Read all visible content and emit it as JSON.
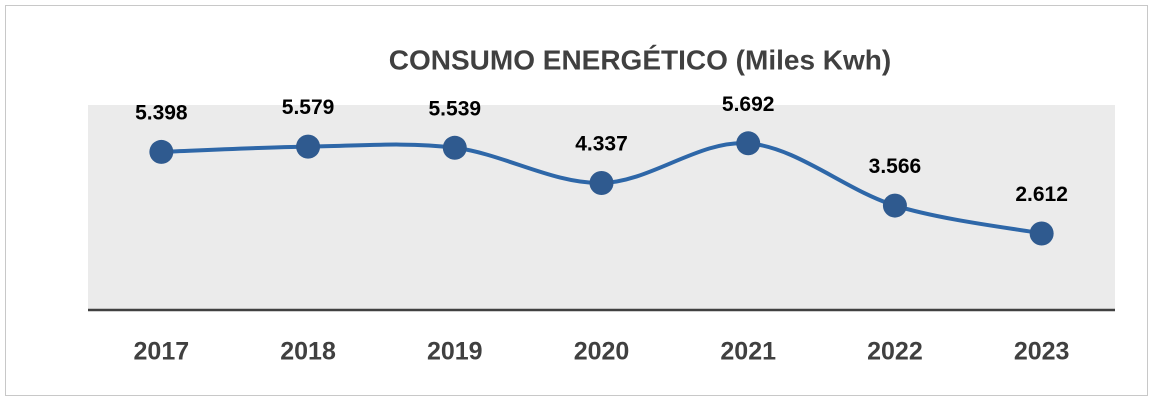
{
  "chart_data": {
    "type": "line",
    "title": "CONSUMO ENERGÉTICO (Miles Kwh)",
    "categories": [
      "2017",
      "2018",
      "2019",
      "2020",
      "2021",
      "2022",
      "2023"
    ],
    "values": [
      5.398,
      5.579,
      5.539,
      4.337,
      5.692,
      3.566,
      2.612
    ],
    "color": "#2e67a8",
    "marker_color": "#2f5a8f",
    "ylim": [
      0,
      7
    ]
  }
}
